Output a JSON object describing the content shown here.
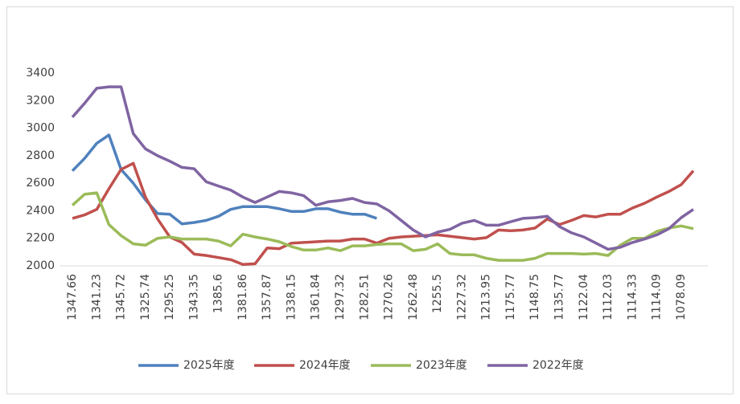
{
  "chart_data": {
    "type": "line",
    "categories": [
      "1347.66",
      null,
      "1341.23",
      null,
      "1345.72",
      null,
      "1325.74",
      null,
      "1295.25",
      null,
      "1343.35",
      null,
      "1385.6",
      null,
      "1381.86",
      null,
      "1357.87",
      null,
      "1338.15",
      null,
      "1361.84",
      null,
      "1297.32",
      null,
      "1282.51",
      null,
      "1270.26",
      null,
      "1262.48",
      null,
      "1255.5",
      null,
      "1227.32",
      null,
      "1213.95",
      null,
      "1175.77",
      null,
      "1148.75",
      null,
      "1135.77",
      null,
      "1122.04",
      null,
      "1112.03",
      null,
      "1114.33",
      null,
      "1114.09",
      null,
      "1078.09",
      null
    ],
    "series": [
      {
        "name": "2025年度",
        "color": "#4f81bd",
        "values": [
          2690,
          2780,
          2890,
          2950,
          2700,
          2600,
          2480,
          2380,
          2375,
          2305,
          2315,
          2330,
          2360,
          2410,
          2430,
          2430,
          2430,
          2415,
          2395,
          2395,
          2415,
          2415,
          2390,
          2375,
          2375,
          2345,
          null,
          null,
          null,
          null,
          null,
          null,
          null,
          null,
          null,
          null,
          null,
          null,
          null,
          null,
          null,
          null,
          null,
          null,
          null,
          null,
          null,
          null,
          null,
          null,
          null,
          null
        ]
      },
      {
        "name": "2024年度",
        "color": "#c0504d",
        "values": [
          2345,
          2370,
          2410,
          2560,
          2700,
          2745,
          2500,
          2340,
          2210,
          2170,
          2085,
          2075,
          2060,
          2045,
          2010,
          2015,
          2130,
          2125,
          2165,
          2170,
          2175,
          2180,
          2180,
          2195,
          2195,
          2165,
          2200,
          2210,
          2215,
          2220,
          2225,
          2215,
          2205,
          2195,
          2205,
          2260,
          2255,
          2260,
          2275,
          2340,
          2300,
          2330,
          2365,
          2355,
          2375,
          2375,
          2420,
          2455,
          2500,
          2540,
          2590,
          2690
        ]
      },
      {
        "name": "2023年度",
        "color": "#9bbb59",
        "values": [
          2440,
          2520,
          2530,
          2300,
          2220,
          2160,
          2150,
          2200,
          2210,
          2195,
          2195,
          2195,
          2180,
          2145,
          2230,
          2210,
          2195,
          2175,
          2140,
          2115,
          2115,
          2130,
          2110,
          2145,
          2145,
          2155,
          2160,
          2160,
          2110,
          2120,
          2160,
          2090,
          2080,
          2080,
          2055,
          2040,
          2040,
          2040,
          2055,
          2090,
          2090,
          2090,
          2085,
          2090,
          2075,
          2150,
          2200,
          2200,
          2250,
          2275,
          2290,
          2270
        ]
      },
      {
        "name": "2022年度",
        "color": "#8064a2",
        "values": [
          3080,
          3180,
          3290,
          3300,
          3300,
          2960,
          2850,
          2800,
          2760,
          2715,
          2705,
          2610,
          2580,
          2550,
          2500,
          2460,
          2500,
          2540,
          2530,
          2510,
          2440,
          2465,
          2475,
          2490,
          2460,
          2450,
          2400,
          2330,
          2260,
          2210,
          2245,
          2265,
          2310,
          2330,
          2295,
          2295,
          2320,
          2345,
          2350,
          2360,
          2285,
          2240,
          2210,
          2165,
          2120,
          2135,
          2170,
          2195,
          2225,
          2270,
          2350,
          2410
        ]
      }
    ],
    "ylim": [
      2000,
      3400
    ],
    "yticks": [
      2000,
      2200,
      2400,
      2600,
      2800,
      3000,
      3200,
      3400
    ],
    "grid": false,
    "legend": "bottom"
  }
}
